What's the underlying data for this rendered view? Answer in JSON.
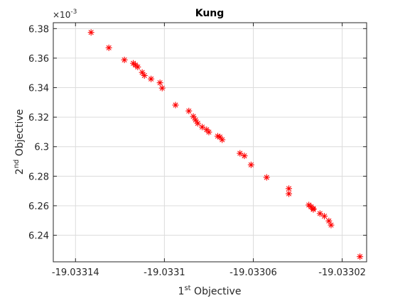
{
  "chart_data": {
    "type": "scatter",
    "title": "Kung",
    "xlabel": {
      "base": "1",
      "sup": "st",
      "rest": " Objective"
    },
    "ylabel": {
      "base": "2",
      "sup": "nd",
      "rest": " Objective"
    },
    "x_ticks": [
      -19.03314,
      -19.0331,
      -19.03306,
      -19.03302
    ],
    "x_tick_labels": [
      "-19.03314",
      "-19.0331",
      "-19.03306",
      "-19.03302"
    ],
    "y_ticks": [
      6.24,
      6.26,
      6.28,
      6.3,
      6.32,
      6.34,
      6.36,
      6.38
    ],
    "y_tick_labels": [
      "6.24",
      "6.26",
      "6.28",
      "6.3",
      "6.32",
      "6.34",
      "6.36",
      "6.38"
    ],
    "y_exponent": {
      "base": "×10",
      "sup": "-3"
    },
    "xlim": [
      -19.03315,
      -19.033009
    ],
    "ylim": [
      6.222,
      6.384
    ],
    "grid": true,
    "marker": "asterisk",
    "marker_color": "#ff0000",
    "series": [
      {
        "points": [
          [
            -19.033133,
            6.3774
          ],
          [
            -19.033125,
            6.367
          ],
          [
            -19.033118,
            6.3588
          ],
          [
            -19.033114,
            6.3565
          ],
          [
            -19.033113,
            6.3553
          ],
          [
            -19.033112,
            6.354
          ],
          [
            -19.03311,
            6.3503
          ],
          [
            -19.033109,
            6.3482
          ],
          [
            -19.033106,
            6.3459
          ],
          [
            -19.033102,
            6.3433
          ],
          [
            -19.033101,
            6.3397
          ],
          [
            -19.033095,
            6.3282
          ],
          [
            -19.033089,
            6.3242
          ],
          [
            -19.033087,
            6.3205
          ],
          [
            -19.033086,
            6.3181
          ],
          [
            -19.033085,
            6.3158
          ],
          [
            -19.033083,
            6.3133
          ],
          [
            -19.033081,
            6.3115
          ],
          [
            -19.03308,
            6.3099
          ],
          [
            -19.033076,
            6.3071
          ],
          [
            -19.033075,
            6.3066
          ],
          [
            -19.033074,
            6.3047
          ],
          [
            -19.033066,
            6.2955
          ],
          [
            -19.033064,
            6.2938
          ],
          [
            -19.033061,
            6.2877
          ],
          [
            -19.033054,
            6.2792
          ],
          [
            -19.033044,
            6.2716
          ],
          [
            -19.033044,
            6.2681
          ],
          [
            -19.033035,
            6.2605
          ],
          [
            -19.033034,
            6.2593
          ],
          [
            -19.033033,
            6.258
          ],
          [
            -19.033033,
            6.2575
          ],
          [
            -19.03303,
            6.2547
          ],
          [
            -19.033028,
            6.2529
          ],
          [
            -19.033026,
            6.2497
          ],
          [
            -19.033025,
            6.2469
          ],
          [
            -19.033012,
            6.2255
          ]
        ]
      }
    ]
  }
}
